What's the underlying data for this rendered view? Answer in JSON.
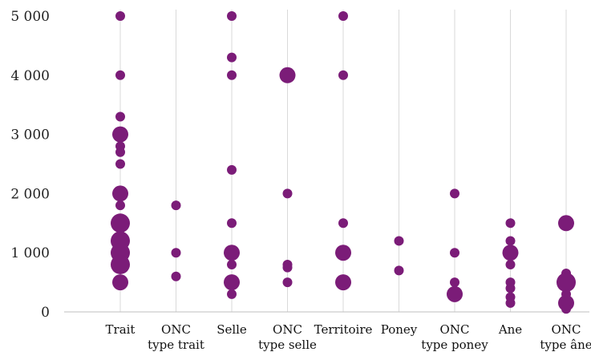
{
  "chart_data": {
    "type": "scatter",
    "title": "",
    "xlabel": "",
    "ylabel": "",
    "ylim": [
      0,
      5000
    ],
    "yticks": [
      0,
      1000,
      2000,
      3000,
      4000,
      5000
    ],
    "ytick_labels": [
      "0",
      "1 000",
      "2 000",
      "3 000",
      "4 000",
      "5 000"
    ],
    "grid": "vertical",
    "legend": "none",
    "color": "#7b1c78",
    "categories": [
      [
        "Trait"
      ],
      [
        "ONC",
        "type trait"
      ],
      [
        "Selle"
      ],
      [
        "ONC",
        "type selle"
      ],
      [
        "Territoire"
      ],
      [
        "Poney"
      ],
      [
        "ONC",
        "type poney"
      ],
      [
        "Ane"
      ],
      [
        "ONC",
        "type âne"
      ]
    ],
    "series": [
      {
        "category": 0,
        "points": [
          {
            "y": 5000,
            "size": "small"
          },
          {
            "y": 4000,
            "size": "small"
          },
          {
            "y": 3300,
            "size": "small"
          },
          {
            "y": 3000,
            "size": "medium"
          },
          {
            "y": 2800,
            "size": "small"
          },
          {
            "y": 2700,
            "size": "small"
          },
          {
            "y": 2500,
            "size": "small"
          },
          {
            "y": 2000,
            "size": "medium"
          },
          {
            "y": 1800,
            "size": "small"
          },
          {
            "y": 1500,
            "size": "large"
          },
          {
            "y": 1200,
            "size": "large"
          },
          {
            "y": 1000,
            "size": "large"
          },
          {
            "y": 800,
            "size": "large"
          },
          {
            "y": 500,
            "size": "medium"
          }
        ]
      },
      {
        "category": 1,
        "points": [
          {
            "y": 1800,
            "size": "small"
          },
          {
            "y": 1000,
            "size": "small"
          },
          {
            "y": 600,
            "size": "small"
          }
        ]
      },
      {
        "category": 2,
        "points": [
          {
            "y": 5000,
            "size": "small"
          },
          {
            "y": 4300,
            "size": "small"
          },
          {
            "y": 4000,
            "size": "small"
          },
          {
            "y": 2400,
            "size": "small"
          },
          {
            "y": 1500,
            "size": "small"
          },
          {
            "y": 1000,
            "size": "medium"
          },
          {
            "y": 800,
            "size": "small"
          },
          {
            "y": 500,
            "size": "medium"
          },
          {
            "y": 300,
            "size": "small"
          }
        ]
      },
      {
        "category": 3,
        "points": [
          {
            "y": 4000,
            "size": "medium"
          },
          {
            "y": 2000,
            "size": "small"
          },
          {
            "y": 800,
            "size": "small"
          },
          {
            "y": 750,
            "size": "small"
          },
          {
            "y": 500,
            "size": "small"
          }
        ]
      },
      {
        "category": 4,
        "points": [
          {
            "y": 5000,
            "size": "small"
          },
          {
            "y": 4000,
            "size": "small"
          },
          {
            "y": 1500,
            "size": "small"
          },
          {
            "y": 1000,
            "size": "medium"
          },
          {
            "y": 500,
            "size": "medium"
          }
        ]
      },
      {
        "category": 5,
        "points": [
          {
            "y": 1200,
            "size": "small"
          },
          {
            "y": 700,
            "size": "small"
          }
        ]
      },
      {
        "category": 6,
        "points": [
          {
            "y": 2000,
            "size": "small"
          },
          {
            "y": 1000,
            "size": "small"
          },
          {
            "y": 500,
            "size": "small"
          },
          {
            "y": 300,
            "size": "medium"
          }
        ]
      },
      {
        "category": 7,
        "points": [
          {
            "y": 1500,
            "size": "small"
          },
          {
            "y": 1200,
            "size": "small"
          },
          {
            "y": 1000,
            "size": "medium"
          },
          {
            "y": 800,
            "size": "small"
          },
          {
            "y": 500,
            "size": "small"
          },
          {
            "y": 400,
            "size": "small"
          },
          {
            "y": 250,
            "size": "small"
          },
          {
            "y": 150,
            "size": "small"
          }
        ]
      },
      {
        "category": 8,
        "points": [
          {
            "y": 1500,
            "size": "medium"
          },
          {
            "y": 650,
            "size": "small"
          },
          {
            "y": 500,
            "size": "large"
          },
          {
            "y": 300,
            "size": "small"
          },
          {
            "y": 150,
            "size": "medium"
          },
          {
            "y": 50,
            "size": "small"
          }
        ]
      }
    ]
  }
}
